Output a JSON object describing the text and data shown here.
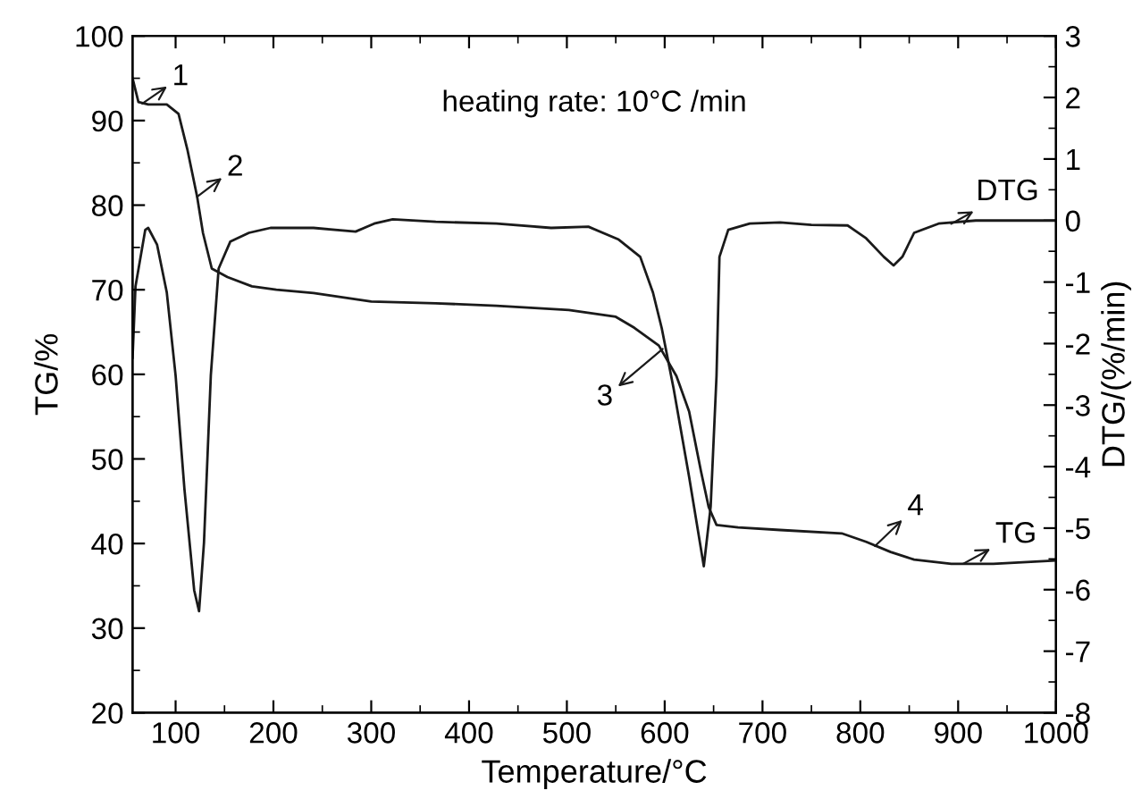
{
  "chart_data": {
    "type": "line",
    "xlabel": "Temperature/°C",
    "ylabel": "TG/%",
    "y2label": "DTG/(%/min)",
    "xlim": [
      56,
      1000
    ],
    "xticks": [
      100,
      200,
      300,
      400,
      500,
      600,
      700,
      800,
      900,
      1000
    ],
    "ylim": [
      20,
      100
    ],
    "yticks": [
      20,
      30,
      40,
      50,
      60,
      70,
      80,
      90,
      100
    ],
    "y2lim": [
      -8,
      3
    ],
    "y2ticks": [
      -8,
      -7,
      -6,
      -5,
      -4,
      -3,
      -2,
      -1,
      0,
      1,
      2,
      3
    ],
    "grid": false,
    "legend": false,
    "marker": "none",
    "line_style": "solid",
    "series": [
      {
        "color": "#1a1a1a",
        "x": [
          56,
          62,
          72,
          91,
          103,
          112,
          122,
          128,
          137,
          153,
          178,
          203,
          241,
          300,
          366,
          428,
          502,
          550,
          569,
          594,
          612,
          625,
          637,
          645,
          653,
          675,
          718,
          781,
          806,
          831,
          855,
          893,
          936,
          1000
        ],
        "values": [
          95,
          92.2,
          91.9,
          91.9,
          90.8,
          86.6,
          81,
          76.7,
          72.5,
          71.5,
          70.4,
          70,
          69.6,
          68.6,
          68.4,
          68.1,
          67.6,
          66.8,
          65.5,
          63.4,
          59.8,
          55.6,
          48.6,
          44.3,
          42.2,
          41.9,
          41.6,
          41.2,
          40.2,
          39,
          38.1,
          37.6,
          37.6,
          38.0
        ]
      },
      {
        "color": "#1a1a1a",
        "axis": "y2",
        "x": [
          56,
          59,
          69,
          72,
          81,
          91,
          100,
          109,
          119,
          124,
          129,
          136,
          144,
          156,
          175,
          197,
          241,
          284,
          303,
          322,
          366,
          428,
          484,
          522,
          553,
          575,
          588,
          597,
          609,
          625,
          640,
          647,
          653,
          656,
          665,
          687,
          718,
          750,
          787,
          806,
          824,
          834,
          843,
          855,
          880,
          918,
          968,
          1000
        ],
        "values": [
          -2.23,
          -1.07,
          -0.15,
          -0.12,
          -0.39,
          -1.17,
          -2.52,
          -4.36,
          -6.01,
          -6.35,
          -5.24,
          -2.52,
          -0.78,
          -0.34,
          -0.2,
          -0.12,
          -0.12,
          -0.18,
          -0.05,
          0.02,
          -0.02,
          -0.05,
          -0.12,
          -0.1,
          -0.31,
          -0.59,
          -1.17,
          -1.75,
          -2.72,
          -4.17,
          -5.62,
          -4.65,
          -2.52,
          -0.59,
          -0.15,
          -0.05,
          -0.03,
          -0.07,
          -0.08,
          -0.29,
          -0.59,
          -0.73,
          -0.59,
          -0.2,
          -0.05,
          0,
          0,
          0
        ]
      }
    ],
    "annotations": [
      {
        "text": "1",
        "x": 66,
        "y": 92
      },
      {
        "text": "2",
        "x": 122,
        "y": 81
      },
      {
        "text": "3",
        "x": 598,
        "y": 63
      },
      {
        "text": "4",
        "x": 815,
        "y": 39.7
      },
      {
        "text": "TG",
        "x": 905,
        "y": 37.6
      },
      {
        "text": "DTG",
        "x": 893,
        "y": 77.8
      },
      "heating rate: 10°C /min"
    ]
  }
}
